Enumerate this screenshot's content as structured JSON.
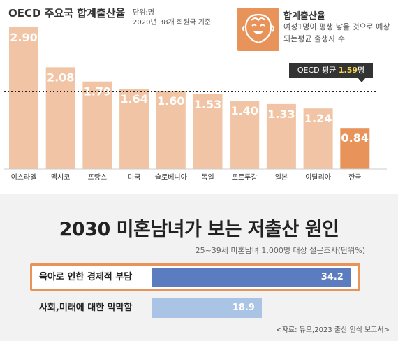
{
  "header": {
    "title": "OECD 주요국 합계출산율",
    "unit": "단위:명",
    "base_note": "2020년 38개 회원국 기준"
  },
  "legend": {
    "icon": "smiling-face-icon",
    "title": "합계출산율",
    "description": "여성1명이 평생 낳을 것으로 예상되는평균 출생자 수"
  },
  "average": {
    "label": "OECD 평균",
    "value": "1.59",
    "unit": "명"
  },
  "survey": {
    "title": "2030 미혼남녀가 보는 저출산 원인",
    "subtitle": "25~39세 미혼남녀 1,000명 대상 설문조사(단위%)",
    "source": "<자료: 듀오,2023 출산 인식 보고서>"
  },
  "colors": {
    "bar": "#f0c4a4",
    "highlight_bar": "#e8935a",
    "survey_bar_1": "#5b7dc0",
    "survey_bar_2": "#a9c4e4"
  },
  "chart_data": [
    {
      "type": "bar",
      "title": "OECD 주요국 합계출산율",
      "categories": [
        "이스라엘",
        "멕시코",
        "프랑스",
        "미국",
        "슬로베니아",
        "독일",
        "포르투갈",
        "일본",
        "이탈리아",
        "한국"
      ],
      "values": [
        2.9,
        2.08,
        1.79,
        1.64,
        1.6,
        1.53,
        1.4,
        1.33,
        1.24,
        0.84
      ],
      "value_labels": [
        "2.90",
        "2.08",
        "1.79",
        "1.64",
        "1.60",
        "1.53",
        "1.40",
        "1.33",
        "1.24",
        "0.84"
      ],
      "highlight": "한국",
      "reference_line": 1.59,
      "ylim": [
        0,
        3.0
      ],
      "grid": false
    },
    {
      "type": "bar",
      "orientation": "horizontal",
      "title": "2030 미혼남녀가 보는 저출산 원인",
      "categories": [
        "육아로 인한 경제적 부담",
        "사회,미래에 대한 막막함"
      ],
      "values": [
        34.2,
        18.9
      ],
      "value_labels": [
        "34.2",
        "18.9"
      ]
    }
  ]
}
